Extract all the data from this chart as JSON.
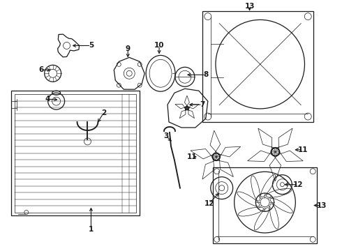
{
  "background_color": "#ffffff",
  "line_color": "#1a1a1a",
  "fig_width": 4.9,
  "fig_height": 3.6,
  "dpi": 100,
  "label_fontsize": 7.5,
  "label_color": "#000000"
}
